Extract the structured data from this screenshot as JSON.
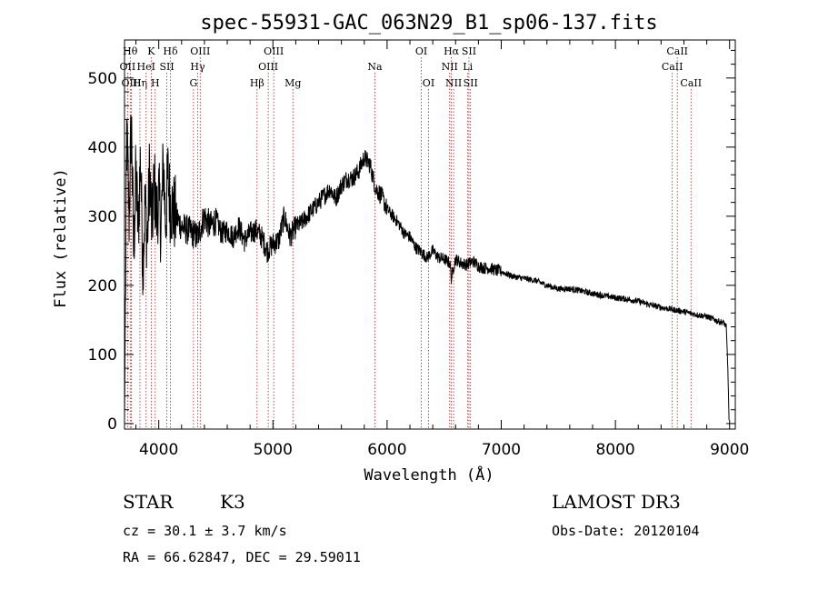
{
  "chart_data": {
    "type": "line",
    "title": "spec-55931-GAC_063N29_B1_sp06-137.fits",
    "xlabel": "Wavelength (Å)",
    "ylabel": "Flux (relative)",
    "xlim": [
      3700,
      9050
    ],
    "ylim": [
      -8,
      555
    ],
    "xticks": [
      4000,
      5000,
      6000,
      7000,
      8000,
      9000
    ],
    "yticks": [
      0,
      100,
      200,
      300,
      400,
      500
    ],
    "colors": {
      "spectrum": "#000000",
      "lines": "#b22222"
    },
    "series": [
      {
        "name": "spectrum",
        "x": [
          3700,
          3720,
          3740,
          3760,
          3780,
          3800,
          3820,
          3840,
          3860,
          3880,
          3900,
          3920,
          3940,
          3960,
          3980,
          4000,
          4020,
          4040,
          4060,
          4080,
          4100,
          4120,
          4150,
          4200,
          4250,
          4300,
          4340,
          4400,
          4450,
          4500,
          4550,
          4600,
          4650,
          4700,
          4750,
          4800,
          4850,
          4900,
          4950,
          5000,
          5050,
          5100,
          5150,
          5200,
          5250,
          5300,
          5350,
          5400,
          5450,
          5500,
          5550,
          5600,
          5650,
          5700,
          5750,
          5800,
          5850,
          5900,
          5950,
          6000,
          6050,
          6100,
          6150,
          6200,
          6250,
          6300,
          6350,
          6400,
          6450,
          6500,
          6550,
          6563,
          6580,
          6600,
          6650,
          6700,
          6750,
          6800,
          6850,
          6900,
          6950,
          7000,
          7100,
          7200,
          7300,
          7400,
          7500,
          7600,
          7700,
          7800,
          7900,
          8000,
          8100,
          8200,
          8300,
          8400,
          8500,
          8600,
          8700,
          8800,
          8900,
          8950,
          8970,
          8985,
          8995
        ],
        "y": [
          5,
          420,
          300,
          440,
          250,
          360,
          280,
          390,
          230,
          320,
          260,
          370,
          280,
          350,
          300,
          330,
          280,
          380,
          290,
          360,
          320,
          310,
          300,
          285,
          280,
          275,
          270,
          300,
          285,
          295,
          275,
          280,
          270,
          285,
          265,
          275,
          280,
          270,
          250,
          260,
          265,
          300,
          270,
          285,
          290,
          300,
          310,
          320,
          330,
          340,
          325,
          345,
          355,
          355,
          365,
          385,
          375,
          340,
          330,
          310,
          300,
          290,
          275,
          270,
          255,
          248,
          240,
          250,
          240,
          238,
          232,
          210,
          225,
          238,
          232,
          230,
          235,
          228,
          225,
          225,
          222,
          220,
          213,
          210,
          207,
          200,
          195,
          195,
          192,
          188,
          185,
          182,
          180,
          177,
          172,
          168,
          165,
          162,
          158,
          155,
          148,
          146,
          140,
          80,
          5
        ]
      }
    ],
    "lines": [
      {
        "w": 3727,
        "label": "OII",
        "row": 1
      },
      {
        "w": 3750,
        "label": "Hθ",
        "row": 0
      },
      {
        "w": 3760,
        "label": "OIII",
        "row": 2
      },
      {
        "w": 3835,
        "label": "Hη",
        "row": 2
      },
      {
        "w": 3889,
        "label": "HeI",
        "row": 1
      },
      {
        "w": 3934,
        "label": "K",
        "row": 0
      },
      {
        "w": 3969,
        "label": "H",
        "row": 2
      },
      {
        "w": 4071,
        "label": "SII",
        "row": 1
      },
      {
        "w": 4102,
        "label": "Hδ",
        "row": 0
      },
      {
        "w": 4304,
        "label": "G",
        "row": 2
      },
      {
        "w": 4341,
        "label": "Hγ",
        "row": 1
      },
      {
        "w": 4363,
        "label": "OIII",
        "row": 0
      },
      {
        "w": 4861,
        "label": "Hβ",
        "row": 2
      },
      {
        "w": 4959,
        "label": "OIII",
        "row": 1
      },
      {
        "w": 5007,
        "label": "OIII",
        "row": 0
      },
      {
        "w": 5175,
        "label": "Mg",
        "row": 2
      },
      {
        "w": 5893,
        "label": "Na",
        "row": 1
      },
      {
        "w": 6300,
        "label": "OI",
        "row": 0
      },
      {
        "w": 6363,
        "label": "OI",
        "row": 2
      },
      {
        "w": 6548,
        "label": "NII",
        "row": 1
      },
      {
        "w": 6563,
        "label": "Hα",
        "row": 0
      },
      {
        "w": 6583,
        "label": "NII",
        "row": 2
      },
      {
        "w": 6707,
        "label": "Li",
        "row": 1
      },
      {
        "w": 6717,
        "label": "SII",
        "row": 0
      },
      {
        "w": 6731,
        "label": "SII",
        "row": 2
      },
      {
        "w": 8498,
        "label": "CaII",
        "row": 1
      },
      {
        "w": 8542,
        "label": "CaII",
        "row": 0
      },
      {
        "w": 8662,
        "label": "CaII",
        "row": 2
      }
    ]
  },
  "info": {
    "class": "STAR",
    "subclass": "K3",
    "survey": "LAMOST DR3",
    "cz": "cz = 30.1 ± 3.7 km/s",
    "obsdate": "Obs-Date: 20120104",
    "radec": "RA =  66.62847, DEC =  29.59011"
  }
}
